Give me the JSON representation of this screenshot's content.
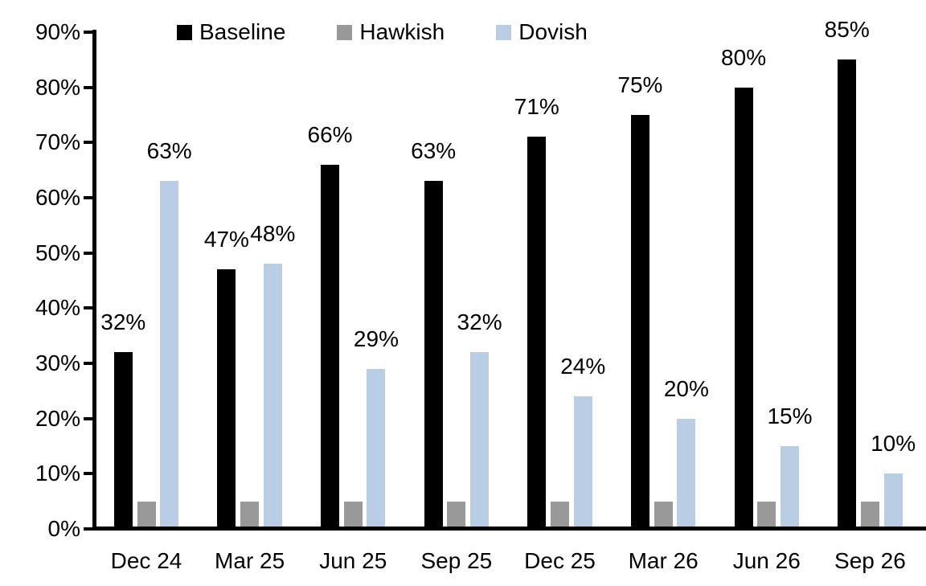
{
  "chart_data": {
    "type": "bar",
    "title": "",
    "categories": [
      "Dec 24",
      "Mar 25",
      "Jun 25",
      "Sep 25",
      "Dec 25",
      "Mar 26",
      "Jun 26",
      "Sep 26"
    ],
    "series": [
      {
        "name": "Baseline",
        "color": "#000000",
        "values": [
          32,
          47,
          66,
          63,
          71,
          75,
          80,
          85
        ],
        "data_labels": [
          "32%",
          "47%",
          "66%",
          "63%",
          "71%",
          "75%",
          "80%",
          "85%"
        ]
      },
      {
        "name": "Hawkish",
        "color": "#999999",
        "values": [
          5,
          5,
          5,
          5,
          5,
          5,
          5,
          5
        ],
        "data_labels": []
      },
      {
        "name": "Dovish",
        "color": "#b9cde4",
        "values": [
          63,
          48,
          29,
          32,
          24,
          20,
          15,
          10
        ],
        "data_labels": [
          "63%",
          "48%",
          "29%",
          "32%",
          "24%",
          "20%",
          "15%",
          "10%"
        ]
      }
    ],
    "y_axis": {
      "min": 0,
      "max": 90,
      "step": 10,
      "tick_labels": [
        "0%",
        "10%",
        "20%",
        "30%",
        "40%",
        "50%",
        "60%",
        "70%",
        "80%",
        "90%"
      ]
    },
    "legend": {
      "position": "top",
      "entries": [
        "Baseline",
        "Hawkish",
        "Dovish"
      ]
    },
    "grid": false,
    "background": "#ffffff"
  }
}
